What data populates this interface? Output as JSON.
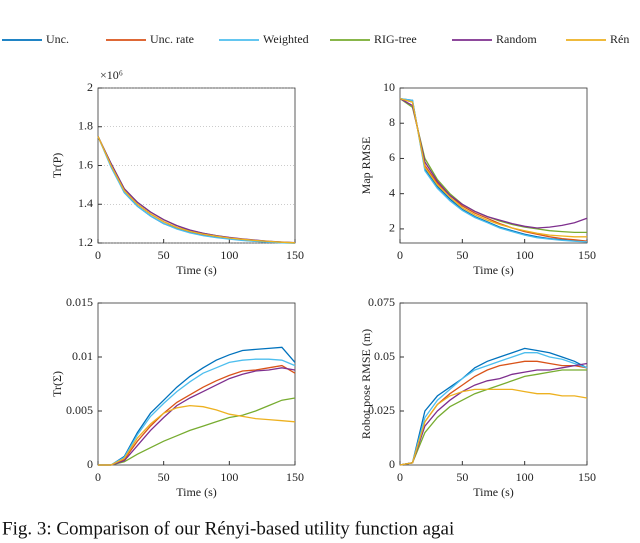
{
  "chart_data": [
    {
      "type": "line",
      "ylabel": "Tr(P)",
      "xlabel": "Time (s)",
      "y_multiplier": "×10⁶",
      "grid": true,
      "xlim": [
        0,
        150
      ],
      "xticks": [
        0,
        50,
        100,
        150
      ],
      "ylim": [
        1.2,
        2
      ],
      "yticks": [
        1.2,
        1.4,
        1.6,
        1.8,
        2
      ],
      "x": [
        0,
        10,
        20,
        30,
        40,
        50,
        60,
        70,
        80,
        90,
        100,
        110,
        120,
        130,
        140,
        150
      ],
      "series": [
        {
          "name": "Unc.",
          "color": "#0072bd",
          "values": [
            1.75,
            1.6,
            1.46,
            1.39,
            1.34,
            1.3,
            1.275,
            1.255,
            1.24,
            1.23,
            1.222,
            1.215,
            1.21,
            1.205,
            1.202,
            1.2
          ]
        },
        {
          "name": "Unc. rate",
          "color": "#d95319",
          "values": [
            1.75,
            1.6,
            1.47,
            1.4,
            1.35,
            1.31,
            1.28,
            1.26,
            1.245,
            1.235,
            1.226,
            1.218,
            1.212,
            1.207,
            1.203,
            1.2
          ]
        },
        {
          "name": "Weighted",
          "color": "#4dbeee",
          "values": [
            1.75,
            1.59,
            1.46,
            1.39,
            1.34,
            1.3,
            1.272,
            1.252,
            1.238,
            1.228,
            1.22,
            1.213,
            1.208,
            1.204,
            1.201,
            1.199
          ]
        },
        {
          "name": "RIG-tree",
          "color": "#77ac30",
          "values": [
            1.75,
            1.61,
            1.48,
            1.41,
            1.36,
            1.32,
            1.29,
            1.265,
            1.25,
            1.238,
            1.228,
            1.22,
            1.214,
            1.208,
            1.204,
            1.201
          ]
        },
        {
          "name": "Random",
          "color": "#7e2f8e",
          "values": [
            1.75,
            1.61,
            1.48,
            1.41,
            1.36,
            1.32,
            1.29,
            1.267,
            1.25,
            1.238,
            1.229,
            1.221,
            1.215,
            1.209,
            1.205,
            1.202
          ]
        },
        {
          "name": "Rén",
          "color": "#edb120",
          "values": [
            1.75,
            1.6,
            1.47,
            1.4,
            1.35,
            1.31,
            1.28,
            1.26,
            1.246,
            1.235,
            1.226,
            1.219,
            1.213,
            1.208,
            1.204,
            1.201
          ]
        }
      ]
    },
    {
      "type": "line",
      "ylabel": "Map RMSE",
      "xlabel": "Time (s)",
      "grid": false,
      "xlim": [
        0,
        150
      ],
      "xticks": [
        0,
        50,
        100,
        150
      ],
      "ylim": [
        1.2,
        10
      ],
      "yticks": [
        2,
        4,
        6,
        8,
        10
      ],
      "x": [
        0,
        10,
        20,
        30,
        40,
        50,
        60,
        70,
        80,
        90,
        100,
        110,
        120,
        130,
        140,
        150
      ],
      "series": [
        {
          "name": "Unc.",
          "color": "#0072bd",
          "values": [
            9.4,
            9.3,
            5.4,
            4.4,
            3.7,
            3.1,
            2.7,
            2.4,
            2.1,
            1.9,
            1.7,
            1.55,
            1.45,
            1.38,
            1.32,
            1.28
          ]
        },
        {
          "name": "Unc. rate",
          "color": "#d95319",
          "values": [
            9.4,
            9.2,
            5.6,
            4.6,
            3.9,
            3.3,
            2.9,
            2.6,
            2.3,
            2.05,
            1.85,
            1.7,
            1.55,
            1.45,
            1.38,
            1.3
          ]
        },
        {
          "name": "Weighted",
          "color": "#4dbeee",
          "values": [
            9.4,
            9.3,
            5.3,
            4.3,
            3.6,
            3.05,
            2.65,
            2.35,
            2.05,
            1.85,
            1.65,
            1.5,
            1.42,
            1.35,
            1.3,
            1.26
          ]
        },
        {
          "name": "RIG-tree",
          "color": "#77ac30",
          "values": [
            9.4,
            8.9,
            6.0,
            4.8,
            4.0,
            3.4,
            3.0,
            2.7,
            2.45,
            2.25,
            2.1,
            2.0,
            1.9,
            1.85,
            1.8,
            1.8
          ]
        },
        {
          "name": "Random",
          "color": "#7e2f8e",
          "values": [
            9.4,
            9.0,
            5.8,
            4.7,
            3.9,
            3.4,
            3.0,
            2.7,
            2.5,
            2.3,
            2.15,
            2.05,
            2.1,
            2.2,
            2.35,
            2.6
          ]
        },
        {
          "name": "Rén",
          "color": "#edb120",
          "values": [
            9.4,
            9.2,
            5.5,
            4.5,
            3.8,
            3.2,
            2.8,
            2.5,
            2.25,
            2.05,
            1.9,
            1.75,
            1.65,
            1.6,
            1.55,
            1.55
          ]
        }
      ]
    },
    {
      "type": "line",
      "ylabel": "Tr(Σ)",
      "xlabel": "Time (s)",
      "grid": false,
      "xlim": [
        0,
        150
      ],
      "xticks": [
        0,
        50,
        100,
        150
      ],
      "ylim": [
        0,
        0.015
      ],
      "yticks": [
        0,
        0.005,
        0.01,
        0.015
      ],
      "x": [
        0,
        10,
        20,
        30,
        40,
        50,
        60,
        70,
        80,
        90,
        100,
        110,
        120,
        130,
        140,
        150
      ],
      "series": [
        {
          "name": "Unc.",
          "color": "#0072bd",
          "values": [
            0,
            0,
            0.0008,
            0.003,
            0.0048,
            0.006,
            0.0072,
            0.0082,
            0.009,
            0.0097,
            0.0102,
            0.0106,
            0.0107,
            0.0108,
            0.0109,
            0.0095
          ]
        },
        {
          "name": "Unc. rate",
          "color": "#d95319",
          "values": [
            0,
            0,
            0.0005,
            0.0022,
            0.0036,
            0.0048,
            0.0058,
            0.0065,
            0.0072,
            0.0078,
            0.0083,
            0.0087,
            0.0088,
            0.009,
            0.0092,
            0.0085
          ]
        },
        {
          "name": "Weighted",
          "color": "#4dbeee",
          "values": [
            0,
            0,
            0.0007,
            0.0028,
            0.0045,
            0.0057,
            0.0068,
            0.0077,
            0.0085,
            0.009,
            0.0095,
            0.0097,
            0.0098,
            0.0098,
            0.0097,
            0.0092
          ]
        },
        {
          "name": "RIG-tree",
          "color": "#77ac30",
          "values": [
            0,
            0,
            0.0003,
            0.001,
            0.0016,
            0.0022,
            0.0027,
            0.0032,
            0.0036,
            0.004,
            0.0044,
            0.0046,
            0.005,
            0.0055,
            0.006,
            0.0062
          ]
        },
        {
          "name": "Random",
          "color": "#7e2f8e",
          "values": [
            0,
            0,
            0.0004,
            0.0018,
            0.0032,
            0.0044,
            0.0055,
            0.0062,
            0.0068,
            0.0074,
            0.008,
            0.0084,
            0.0087,
            0.0088,
            0.009,
            0.0088
          ]
        },
        {
          "name": "Rén",
          "color": "#edb120",
          "values": [
            0,
            0,
            0.0006,
            0.0025,
            0.0038,
            0.0048,
            0.0053,
            0.0055,
            0.0054,
            0.0051,
            0.0047,
            0.0045,
            0.0043,
            0.0042,
            0.0041,
            0.004
          ]
        }
      ]
    },
    {
      "type": "line",
      "ylabel": "Robot pose RMSE (m)",
      "xlabel": "Time (s)",
      "grid": false,
      "xlim": [
        0,
        150
      ],
      "xticks": [
        0,
        50,
        100,
        150
      ],
      "ylim": [
        0,
        0.075
      ],
      "yticks": [
        0,
        0.025,
        0.05,
        0.075
      ],
      "x": [
        0,
        10,
        20,
        30,
        40,
        50,
        60,
        70,
        80,
        90,
        100,
        110,
        120,
        130,
        140,
        150
      ],
      "series": [
        {
          "name": "Unc.",
          "color": "#0072bd",
          "values": [
            0,
            0.001,
            0.025,
            0.032,
            0.036,
            0.04,
            0.045,
            0.048,
            0.05,
            0.052,
            0.054,
            0.053,
            0.052,
            0.05,
            0.048,
            0.045
          ]
        },
        {
          "name": "Unc. rate",
          "color": "#d95319",
          "values": [
            0,
            0.001,
            0.02,
            0.028,
            0.033,
            0.037,
            0.041,
            0.044,
            0.046,
            0.047,
            0.048,
            0.048,
            0.047,
            0.046,
            0.046,
            0.045
          ]
        },
        {
          "name": "Weighted",
          "color": "#4dbeee",
          "values": [
            0,
            0.001,
            0.022,
            0.03,
            0.035,
            0.04,
            0.044,
            0.046,
            0.048,
            0.05,
            0.052,
            0.052,
            0.05,
            0.049,
            0.047,
            0.045
          ]
        },
        {
          "name": "RIG-tree",
          "color": "#77ac30",
          "values": [
            0,
            0.001,
            0.015,
            0.022,
            0.027,
            0.03,
            0.033,
            0.035,
            0.037,
            0.039,
            0.041,
            0.042,
            0.043,
            0.044,
            0.044,
            0.044
          ]
        },
        {
          "name": "Random",
          "color": "#7e2f8e",
          "values": [
            0,
            0.001,
            0.018,
            0.025,
            0.03,
            0.034,
            0.037,
            0.039,
            0.04,
            0.042,
            0.043,
            0.044,
            0.044,
            0.045,
            0.046,
            0.047
          ]
        },
        {
          "name": "Rén",
          "color": "#edb120",
          "values": [
            0,
            0.001,
            0.02,
            0.028,
            0.032,
            0.034,
            0.035,
            0.035,
            0.035,
            0.035,
            0.034,
            0.033,
            0.033,
            0.032,
            0.032,
            0.031
          ]
        }
      ]
    }
  ],
  "caption": "Fig. 3: Comparison of our Rényi-based utility function agai"
}
